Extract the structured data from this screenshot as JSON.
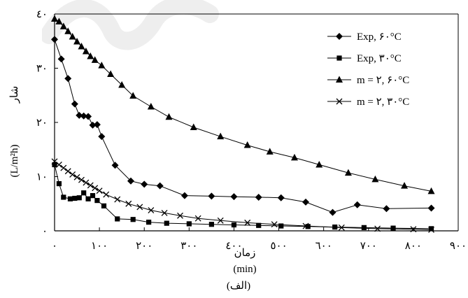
{
  "chart_data": {
    "type": "line",
    "title": "",
    "caption": "(الف)",
    "xlabel_top": "زمان",
    "xlabel_bottom": "(min)",
    "ylabel_word": "شار",
    "ylabel_unit": "(L/m²h)",
    "xlim": [
      0,
      900
    ],
    "ylim": [
      0,
      40
    ],
    "x_ticks": [
      0,
      100,
      200,
      300,
      400,
      500,
      600,
      700,
      800,
      900
    ],
    "x_tick_labels": [
      "٠",
      "١٠٠",
      "٢٠٠",
      "٣٠٠",
      "٤٠٠",
      "٥٠٠",
      "٦٠٠",
      "٧٠٠",
      "٨٠٠",
      "٩٠٠"
    ],
    "y_ticks": [
      0,
      10,
      20,
      30,
      40
    ],
    "y_tick_labels": [
      "٠",
      "١٠",
      "٢٠",
      "٣٠",
      "٤٠"
    ],
    "grid": false,
    "legend_position": "top-right",
    "series": [
      {
        "name": "Exp, ۶۰°C",
        "marker": "diamond",
        "x": [
          0,
          15,
          30,
          45,
          55,
          65,
          75,
          85,
          95,
          105,
          135,
          170,
          200,
          235,
          290,
          350,
          400,
          455,
          505,
          560,
          620,
          675,
          740,
          840
        ],
        "y": [
          35.3,
          31.7,
          28.1,
          23.4,
          21.3,
          21.2,
          21.1,
          19.5,
          19.6,
          17.4,
          12.1,
          9.2,
          8.6,
          8.3,
          6.5,
          6.4,
          6.3,
          6.2,
          6.1,
          5.3,
          3.4,
          4.8,
          4.1,
          4.2
        ]
      },
      {
        "name": "Exp, ۳۰°C",
        "marker": "square",
        "x": [
          0,
          10,
          20,
          35,
          45,
          55,
          65,
          75,
          85,
          95,
          110,
          140,
          175,
          210,
          250,
          300,
          350,
          400,
          455,
          505,
          565,
          625,
          690,
          755,
          840
        ],
        "y": [
          12.2,
          8.7,
          6.2,
          5.9,
          6.0,
          6.1,
          7.0,
          5.9,
          6.5,
          5.6,
          4.6,
          2.2,
          2.1,
          1.6,
          1.4,
          1.3,
          1.2,
          1.1,
          1.0,
          0.9,
          0.8,
          0.7,
          0.6,
          0.5,
          0.4
        ]
      },
      {
        "name": "m = ۲, ۶۰°C",
        "marker": "triangle",
        "x": [
          0,
          10,
          20,
          30,
          40,
          50,
          60,
          70,
          80,
          90,
          105,
          125,
          150,
          175,
          215,
          255,
          310,
          370,
          430,
          480,
          535,
          590,
          655,
          715,
          780,
          840
        ],
        "y": [
          39.1,
          38.6,
          37.7,
          36.8,
          35.8,
          34.9,
          34.0,
          33.1,
          32.2,
          31.5,
          30.5,
          28.9,
          26.9,
          24.9,
          22.9,
          21.0,
          19.1,
          17.4,
          15.8,
          14.6,
          13.5,
          12.2,
          10.7,
          9.5,
          8.3,
          7.3
        ]
      },
      {
        "name": "m = ۲, ۳۰°C",
        "marker": "x",
        "x": [
          0,
          10,
          20,
          30,
          40,
          50,
          60,
          70,
          80,
          90,
          100,
          115,
          140,
          165,
          190,
          215,
          245,
          280,
          320,
          370,
          430,
          490,
          560,
          640,
          720,
          800,
          840
        ],
        "y": [
          12.8,
          12.2,
          11.6,
          11.0,
          10.4,
          9.9,
          9.4,
          8.9,
          8.4,
          7.9,
          7.4,
          6.7,
          5.8,
          5.0,
          4.4,
          3.8,
          3.3,
          2.8,
          2.3,
          1.9,
          1.5,
          1.2,
          0.9,
          0.6,
          0.4,
          0.3,
          0.2
        ]
      }
    ]
  }
}
